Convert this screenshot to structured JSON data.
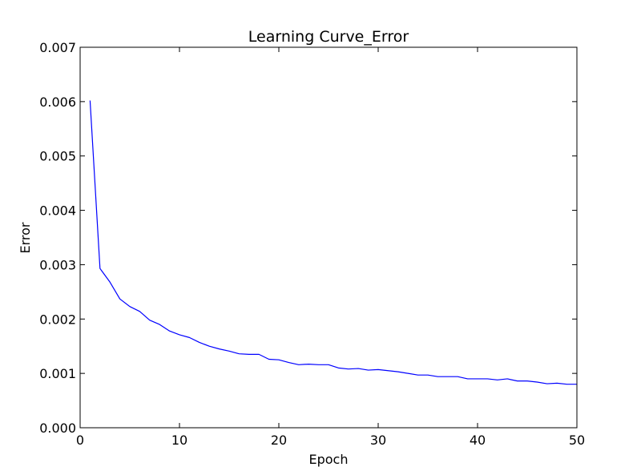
{
  "chart_data": {
    "type": "line",
    "title": "Learning Curve_Error",
    "xlabel": "Epoch",
    "ylabel": "Error",
    "xlim": [
      0,
      50
    ],
    "ylim": [
      0,
      0.007
    ],
    "xticks": [
      0,
      10,
      20,
      30,
      40,
      50
    ],
    "yticks": [
      0.0,
      0.001,
      0.002,
      0.003,
      0.004,
      0.005,
      0.006,
      0.007
    ],
    "xtick_labels": [
      "0",
      "10",
      "20",
      "30",
      "40",
      "50"
    ],
    "ytick_labels": [
      "0.000",
      "0.001",
      "0.002",
      "0.003",
      "0.004",
      "0.005",
      "0.006",
      "0.007"
    ],
    "grid": false,
    "legend": "none",
    "series": [
      {
        "color": "#0000ff",
        "x": [
          1,
          2,
          3,
          4,
          5,
          6,
          7,
          8,
          9,
          10,
          11,
          12,
          13,
          14,
          15,
          16,
          17,
          18,
          19,
          20,
          21,
          22,
          23,
          24,
          25,
          26,
          27,
          28,
          29,
          30,
          31,
          32,
          33,
          34,
          35,
          36,
          37,
          38,
          39,
          40,
          41,
          42,
          43,
          44,
          45,
          46,
          47,
          48,
          49,
          50
        ],
        "values": [
          0.00602,
          0.00293,
          0.00268,
          0.00237,
          0.00223,
          0.00214,
          0.00198,
          0.0019,
          0.00178,
          0.00171,
          0.00166,
          0.00157,
          0.0015,
          0.00145,
          0.00141,
          0.00136,
          0.00135,
          0.00135,
          0.00126,
          0.00125,
          0.0012,
          0.00116,
          0.00117,
          0.00116,
          0.00116,
          0.0011,
          0.00108,
          0.00109,
          0.00106,
          0.00107,
          0.00105,
          0.00103,
          0.001,
          0.00097,
          0.00097,
          0.00094,
          0.00094,
          0.00094,
          0.0009,
          0.0009,
          0.0009,
          0.00088,
          0.0009,
          0.00086,
          0.00086,
          0.00084,
          0.00081,
          0.00082,
          0.0008,
          0.0008
        ]
      }
    ]
  }
}
